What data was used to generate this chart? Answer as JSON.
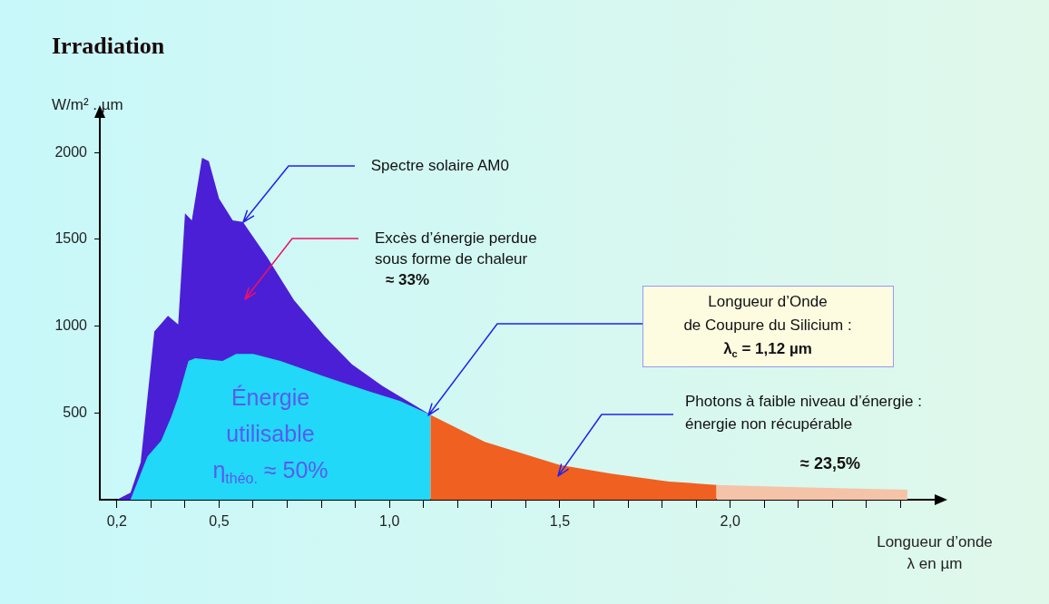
{
  "chart_data": {
    "type": "area",
    "title": "Irradiation",
    "xlabel": "Longueur d’onde\nλ en µm",
    "ylabel": "W/m² . µm",
    "xlim": [
      0.15,
      2.6
    ],
    "ylim": [
      0,
      2200
    ],
    "xticks": [
      {
        "value": 0.2,
        "label": "0,2"
      },
      {
        "value": 0.3,
        "label": null
      },
      {
        "value": 0.4,
        "label": null
      },
      {
        "value": 0.5,
        "label": "0,5"
      },
      {
        "value": 0.6,
        "label": null
      },
      {
        "value": 0.7,
        "label": null
      },
      {
        "value": 0.8,
        "label": null
      },
      {
        "value": 0.9,
        "label": null
      },
      {
        "value": 1.0,
        "label": "1,0"
      },
      {
        "value": 1.1,
        "label": null
      },
      {
        "value": 1.2,
        "label": null
      },
      {
        "value": 1.3,
        "label": null
      },
      {
        "value": 1.4,
        "label": null
      },
      {
        "value": 1.5,
        "label": "1,5"
      },
      {
        "value": 1.6,
        "label": null
      },
      {
        "value": 1.7,
        "label": null
      },
      {
        "value": 1.8,
        "label": null
      },
      {
        "value": 1.9,
        "label": null
      },
      {
        "value": 2.0,
        "label": "2,0"
      },
      {
        "value": 2.1,
        "label": null
      },
      {
        "value": 2.2,
        "label": null
      },
      {
        "value": 2.3,
        "label": null
      },
      {
        "value": 2.4,
        "label": null
      },
      {
        "value": 2.5,
        "label": null
      }
    ],
    "yticks": [
      500,
      1000,
      1500,
      2000
    ],
    "series": [
      {
        "color": "#22d8f8",
        "x": [
          0.24,
          0.29,
          0.33,
          0.36,
          0.38,
          0.41,
          0.43,
          0.51,
          0.55,
          0.6,
          0.68,
          0.81,
          0.94,
          1.03,
          1.12
        ],
        "values": [
          0,
          250,
          340,
          480,
          590,
          800,
          815,
          800,
          840,
          840,
          800,
          710,
          625,
          570,
          490
        ]
      },
      {
        "color": "#4b1fd6",
        "x": [
          0.2,
          0.24,
          0.27,
          0.31,
          0.35,
          0.38,
          0.4,
          0.42,
          0.45,
          0.47,
          0.5,
          0.54,
          0.57,
          0.64,
          0.72,
          0.81,
          0.89,
          0.98,
          1.12
        ],
        "values": [
          0,
          40,
          215,
          970,
          1060,
          1010,
          1650,
          1610,
          1970,
          1950,
          1735,
          1610,
          1600,
          1400,
          1150,
          940,
          780,
          655,
          490
        ]
      },
      {
        "color": "#f06020",
        "x": [
          1.12,
          1.13,
          1.28,
          1.5,
          1.65,
          1.82,
          1.96
        ],
        "values": [
          490,
          480,
          333,
          200,
          150,
          105,
          85
        ]
      },
      {
        "color": "#f5c4a8",
        "x": [
          1.96,
          2.2,
          2.52
        ],
        "values": [
          85,
          72,
          58
        ]
      }
    ],
    "annotations": [
      {
        "text": "Spectre solaire AM0",
        "x": 0.57,
        "y": 1600
      },
      "Excès d’énergie perdue\nsous forme de chaleur\n≈ 33%",
      "Longueur d’Onde\nde Coupure du Silicium :\nλ$_{c}$ = 1,12 µm",
      "Photons à faible niveau d’énergie :\nénergie non récupérable",
      "≈ 23,5%",
      "Énergie\nutilisable\nη$_{théo.}$ ≈ 50%"
    ]
  }
}
